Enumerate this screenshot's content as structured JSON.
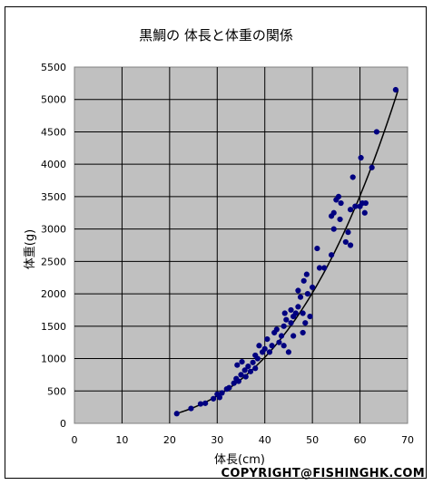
{
  "chart_data": {
    "type": "scatter",
    "title": "黒鯛の 体長と体重の関係",
    "xlabel": "体長(cm)",
    "ylabel": "体重(g)",
    "xlim": [
      0,
      70
    ],
    "ylim": [
      0,
      5500
    ],
    "xticks": [
      0,
      10,
      20,
      30,
      40,
      50,
      60,
      70
    ],
    "yticks": [
      0,
      500,
      1000,
      1500,
      2000,
      2500,
      3000,
      3500,
      4000,
      4500,
      5000,
      5500
    ],
    "grid": true,
    "legend": "none",
    "colors": {
      "plot_bg": "#c0c0c0",
      "marker": "#000080",
      "trend": "#000000",
      "grid": "#000000"
    },
    "series": [
      {
        "points": [
          [
            21.5,
            150
          ],
          [
            24.5,
            230
          ],
          [
            26.5,
            300
          ],
          [
            27.5,
            310
          ],
          [
            29.2,
            380
          ],
          [
            30.0,
            450
          ],
          [
            30.5,
            400
          ],
          [
            31.0,
            470
          ],
          [
            32.0,
            530
          ],
          [
            32.5,
            550
          ],
          [
            33.5,
            620
          ],
          [
            34.0,
            690
          ],
          [
            34.5,
            650
          ],
          [
            34.2,
            900
          ],
          [
            35.0,
            750
          ],
          [
            35.2,
            950
          ],
          [
            35.8,
            820
          ],
          [
            36.0,
            720
          ],
          [
            36.5,
            880
          ],
          [
            37.0,
            800
          ],
          [
            37.5,
            940
          ],
          [
            38.0,
            850
          ],
          [
            38.5,
            1000
          ],
          [
            38.0,
            1050
          ],
          [
            38.8,
            1200
          ],
          [
            39.5,
            1100
          ],
          [
            40.0,
            1150
          ],
          [
            40.5,
            1300
          ],
          [
            41.0,
            1100
          ],
          [
            41.5,
            1200
          ],
          [
            42.0,
            1400
          ],
          [
            42.5,
            1450
          ],
          [
            43.0,
            1250
          ],
          [
            43.5,
            1350
          ],
          [
            44.0,
            1200
          ],
          [
            44.0,
            1500
          ],
          [
            44.5,
            1600
          ],
          [
            44.2,
            1700
          ],
          [
            45.0,
            1100
          ],
          [
            45.5,
            1550
          ],
          [
            45.5,
            1750
          ],
          [
            46.0,
            1350
          ],
          [
            46.0,
            1650
          ],
          [
            46.5,
            1700
          ],
          [
            47.0,
            1800
          ],
          [
            47.0,
            2050
          ],
          [
            47.5,
            1950
          ],
          [
            48.0,
            1400
          ],
          [
            48.0,
            1700
          ],
          [
            48.2,
            2200
          ],
          [
            48.5,
            1550
          ],
          [
            48.8,
            2300
          ],
          [
            49.0,
            2000
          ],
          [
            49.5,
            1650
          ],
          [
            50.0,
            2100
          ],
          [
            51.0,
            2700
          ],
          [
            51.5,
            2400
          ],
          [
            52.5,
            2400
          ],
          [
            54.0,
            2600
          ],
          [
            54.0,
            3200
          ],
          [
            54.5,
            3000
          ],
          [
            54.5,
            3250
          ],
          [
            55.0,
            3450
          ],
          [
            55.5,
            3500
          ],
          [
            55.8,
            3150
          ],
          [
            56.0,
            3400
          ],
          [
            57.0,
            2800
          ],
          [
            57.5,
            2950
          ],
          [
            58.0,
            2750
          ],
          [
            58.0,
            3300
          ],
          [
            58.5,
            3800
          ],
          [
            59.0,
            3350
          ],
          [
            60.0,
            3350
          ],
          [
            60.2,
            4100
          ],
          [
            60.5,
            3400
          ],
          [
            61.0,
            3250
          ],
          [
            61.2,
            3400
          ],
          [
            62.5,
            3950
          ],
          [
            63.5,
            4500
          ],
          [
            67.5,
            5150
          ]
        ]
      }
    ],
    "trendline": {
      "type": "power",
      "a": 0.01325,
      "b": 3.05,
      "x_start": 21.5,
      "x_end": 68.0
    }
  },
  "copyright": "COPYRIGHT@FISHINGHK.COM"
}
